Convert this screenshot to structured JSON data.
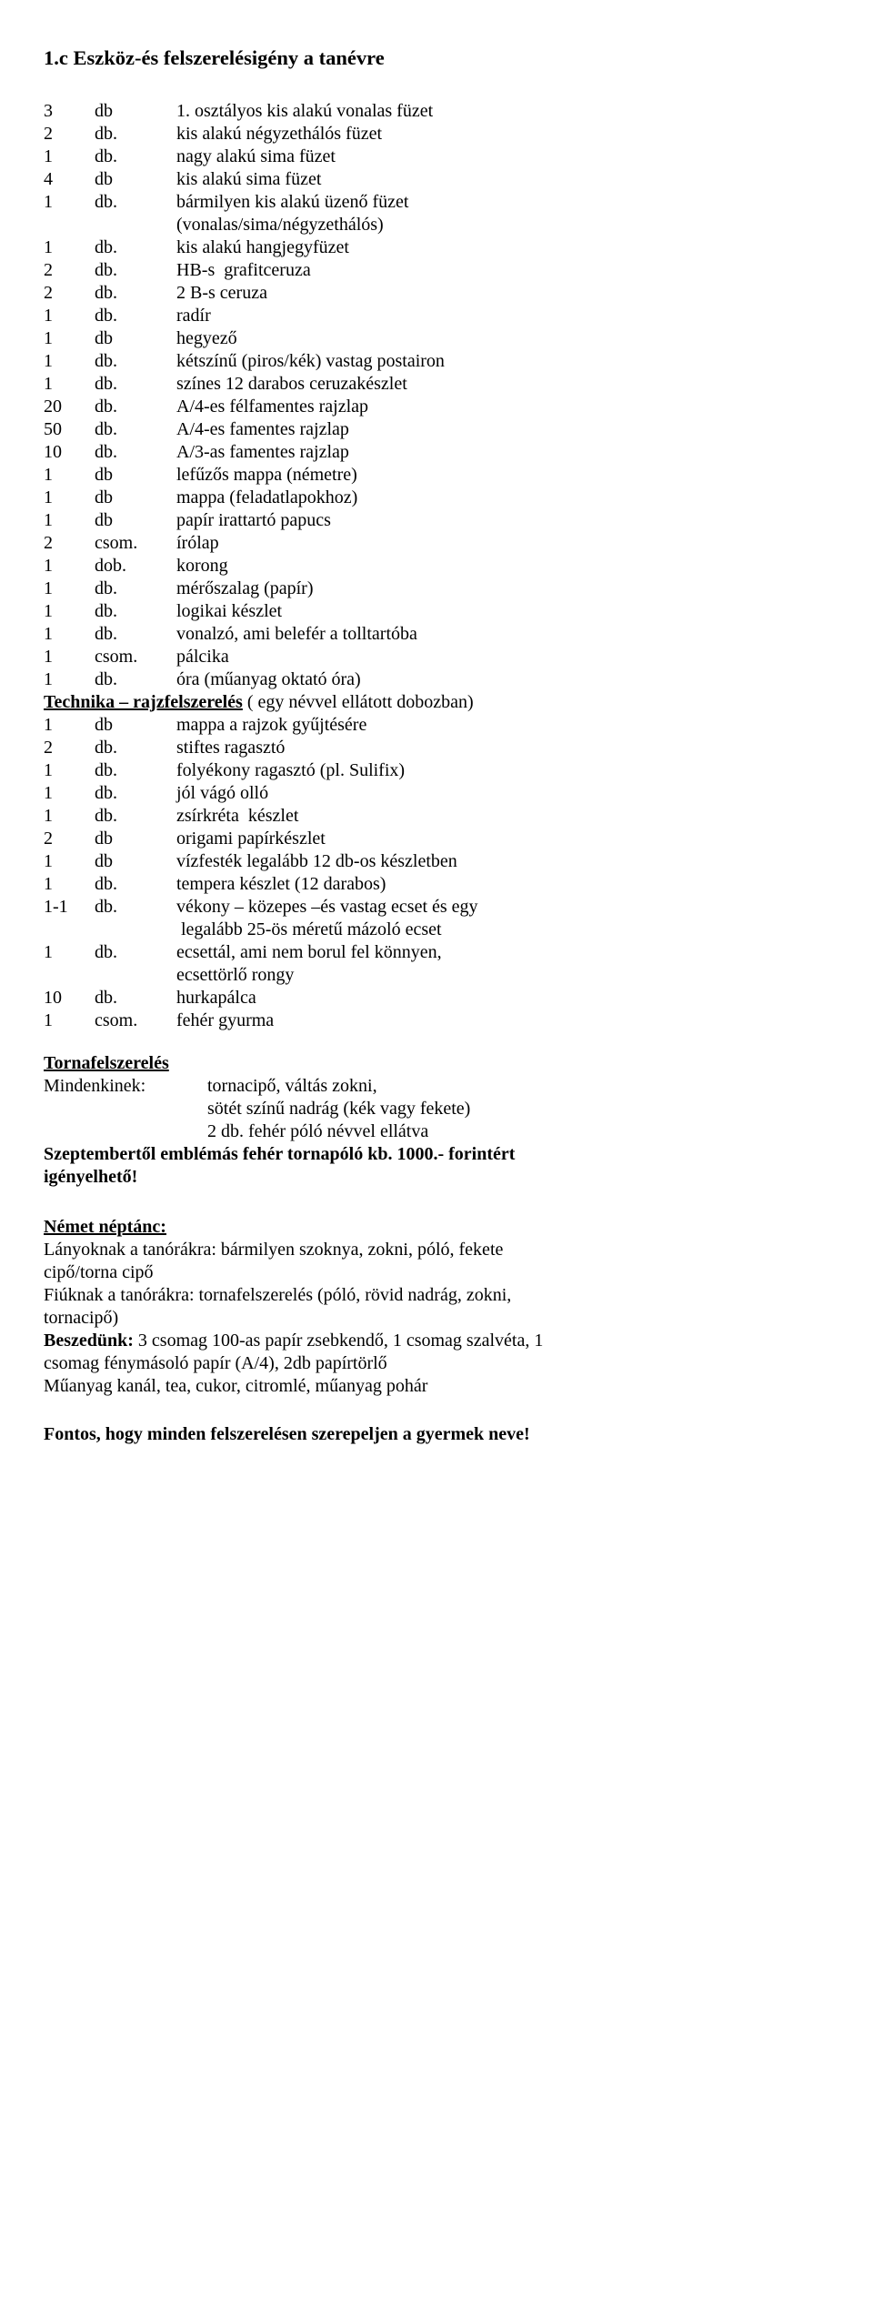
{
  "title": "1.c  Eszköz-és felszerelésigény a tanévre",
  "items": [
    {
      "qty": "3",
      "unit": "db",
      "desc": "1. osztályos kis alakú vonalas füzet"
    },
    {
      "qty": "2",
      "unit": "db.",
      "desc": "kis alakú négyzethálós füzet"
    },
    {
      "qty": "1",
      "unit": "db.",
      "desc": "nagy alakú sima füzet"
    },
    {
      "qty": "4",
      "unit": "db",
      "desc": "kis alakú sima füzet"
    },
    {
      "qty": "1",
      "unit": "db.",
      "desc": "bármilyen kis alakú üzenő füzet"
    },
    {
      "qty": "",
      "unit": "",
      "desc": "(vonalas/sima/négyzethálós)"
    },
    {
      "qty": "1",
      "unit": "db.",
      "desc": "kis alakú hangjegyfüzet"
    },
    {
      "qty": "2",
      "unit": "db.",
      "desc": "HB-s  grafitceruza"
    },
    {
      "qty": "2",
      "unit": "db.",
      "desc": "2 B-s ceruza"
    },
    {
      "qty": "1",
      "unit": "db.",
      "desc": "radír"
    },
    {
      "qty": "1",
      "unit": "db",
      "desc": "hegyező"
    },
    {
      "qty": "1",
      "unit": "db.",
      "desc": "kétszínű (piros/kék) vastag postairon"
    },
    {
      "qty": "1",
      "unit": "db.",
      "desc": "színes 12 darabos ceruzakészlet"
    },
    {
      "qty": "20",
      "unit": "db.",
      "desc": "A/4-es félfamentes rajzlap"
    },
    {
      "qty": "50",
      "unit": "db.",
      "desc": "A/4-es famentes rajzlap"
    },
    {
      "qty": "10",
      "unit": "db.",
      "desc": "A/3-as famentes rajzlap"
    },
    {
      "qty": "1",
      "unit": "db",
      "desc": "lefűzős mappa (németre)"
    },
    {
      "qty": "1",
      "unit": "db",
      "desc": "mappa (feladatlapokhoz)"
    },
    {
      "qty": "1",
      "unit": "db",
      "desc": "papír irattartó papucs"
    },
    {
      "qty": "2",
      "unit": "csom.",
      "desc": "írólap"
    },
    {
      "qty": "1",
      "unit": "dob.",
      "desc": "korong"
    },
    {
      "qty": "1",
      "unit": "db.",
      "desc": "mérőszalag (papír)"
    },
    {
      "qty": "1",
      "unit": "db.",
      "desc": "logikai készlet"
    },
    {
      "qty": "1",
      "unit": "db.",
      "desc": "vonalzó, ami belefér a tolltartóba"
    },
    {
      "qty": "1",
      "unit": "csom.",
      "desc": "pálcika"
    },
    {
      "qty": "1",
      "unit": "db.",
      "desc": "óra (műanyag oktató óra)"
    }
  ],
  "tech": {
    "heading": "Technika – rajzfelszerelés",
    "tail": " ( egy névvel ellátott dobozban)",
    "items": [
      {
        "qty": "1",
        "unit": "db",
        "desc": "mappa a rajzok gyűjtésére"
      },
      {
        "qty": "2",
        "unit": "db.",
        "desc": "stiftes ragasztó"
      },
      {
        "qty": "1",
        "unit": "db.",
        "desc": "folyékony ragasztó (pl. Sulifix)"
      },
      {
        "qty": "1",
        "unit": "db.",
        "desc": "jól vágó olló"
      },
      {
        "qty": "1",
        "unit": "db.",
        "desc": "zsírkréta  készlet"
      },
      {
        "qty": "2",
        "unit": "db",
        "desc": "origami papírkészlet"
      },
      {
        "qty": "1",
        "unit": "db",
        "desc": "vízfesték legalább 12 db-os készletben"
      },
      {
        "qty": "1",
        "unit": "db.",
        "desc": "tempera készlet (12 darabos)"
      },
      {
        "qty": "1-1",
        "unit": "db.",
        "desc": "vékony – közepes –és vastag ecset és egy"
      },
      {
        "qty": "",
        "unit": "",
        "desc": " legalább 25-ös méretű mázoló ecset"
      },
      {
        "qty": "1",
        "unit": "db.",
        "desc": "ecsettál, ami nem borul fel könnyen,"
      },
      {
        "qty": "",
        "unit": "",
        "desc": "ecsettörlő rongy"
      },
      {
        "qty": "10",
        "unit": "db.",
        "desc": "hurkapálca"
      },
      {
        "qty": "1",
        "unit": "csom.",
        "desc": "fehér gyurma"
      }
    ]
  },
  "gym": {
    "heading": "Tornafelszerelés",
    "label": "Mindenkinek:",
    "lines": [
      "tornacipő, váltás zokni,",
      "sötét színű nadrág (kék vagy fekete)",
      "2 db. fehér póló névvel ellátva"
    ],
    "bold1": "Szeptembertől emblémás fehér tornapóló kb. 1000.- forintért",
    "bold2": "igényelhető!"
  },
  "dance": {
    "heading": "Német néptánc:",
    "lines": [
      "Lányoknak a tanórákra: bármilyen szoknya, zokni, póló, fekete",
      "cipő/torna cipő",
      "Fiúknak a tanórákra: tornafelszerelés (póló, rövid nadrág, zokni,",
      "tornacipő)"
    ],
    "collect_bold": "Beszedünk:",
    "collect_lines": [
      " 3 csomag 100-as papír zsebkendő, 1 csomag szalvéta, 1",
      "csomag fénymásoló papír (A/4), 2db papírtörlő",
      "Műanyag kanál, tea, cukor, citromlé, műanyag pohár"
    ]
  },
  "footer": "Fontos, hogy minden felszerelésen szerepeljen a gyermek neve!"
}
